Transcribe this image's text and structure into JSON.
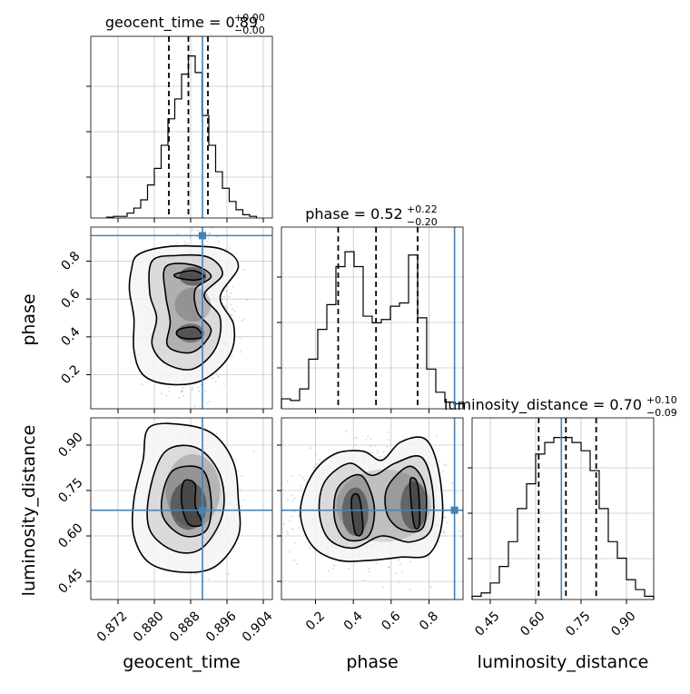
{
  "chart_data": {
    "type": "corner",
    "parameters": [
      "geocent_time",
      "phase",
      "luminosity_distance"
    ],
    "ranges": {
      "geocent_time": [
        0.866,
        0.906
      ],
      "phase": [
        0.02,
        0.98
      ],
      "luminosity_distance": [
        0.39,
        0.99
      ]
    },
    "ticks": {
      "geocent_time": [
        0.872,
        0.88,
        0.888,
        0.896,
        0.904
      ],
      "phase": [
        0.2,
        0.4,
        0.6,
        0.8
      ],
      "luminosity_distance": [
        0.45,
        0.6,
        0.75,
        0.9
      ]
    },
    "tick_labels": {
      "geocent_time": [
        "0.872",
        "0.880",
        "0.888",
        "0.896",
        "0.904"
      ],
      "phase": [
        "0.2",
        "0.4",
        "0.6",
        "0.8"
      ],
      "luminosity_distance": [
        "0.45",
        "0.60",
        "0.75",
        "0.90"
      ]
    },
    "axis_labels": {
      "geocent_time": "geocent_time",
      "phase": "phase",
      "luminosity_distance": "luminosity_distance"
    },
    "titles": {
      "geocent_time": {
        "name": "geocent_time",
        "median": "0.89",
        "plus": "+0.00",
        "minus": "−0.00"
      },
      "phase": {
        "name": "phase",
        "median": "0.52",
        "plus": "+0.22",
        "minus": "−0.20"
      },
      "luminosity_distance": {
        "name": "luminosity_distance",
        "median": "0.70",
        "plus": "+0.10",
        "minus": "−0.09"
      }
    },
    "truths": {
      "geocent_time": 0.8906,
      "phase": 0.935,
      "luminosity_distance": 0.685
    },
    "quantiles": {
      "geocent_time": [
        0.8832,
        0.8875,
        0.8918
      ],
      "phase": [
        0.32,
        0.52,
        0.74
      ],
      "luminosity_distance": [
        0.61,
        0.7,
        0.8
      ]
    },
    "histograms": {
      "geocent_time": {
        "bins": [
          0.8695,
          0.871,
          0.8725,
          0.874,
          0.8755,
          0.877,
          0.8785,
          0.88,
          0.8815,
          0.883,
          0.8845,
          0.886,
          0.8875,
          0.889,
          0.8905,
          0.892,
          0.8935,
          0.895,
          0.8965,
          0.898,
          0.8995,
          0.901,
          0.9025
        ],
        "counts": [
          0.005,
          0.01,
          0.01,
          0.03,
          0.06,
          0.11,
          0.2,
          0.3,
          0.44,
          0.6,
          0.72,
          0.87,
          0.98,
          0.88,
          0.62,
          0.44,
          0.28,
          0.18,
          0.1,
          0.05,
          0.02,
          0.01
        ]
      },
      "phase": {
        "bins": [
          0.02,
          0.068,
          0.116,
          0.164,
          0.212,
          0.26,
          0.308,
          0.356,
          0.404,
          0.452,
          0.5,
          0.548,
          0.596,
          0.644,
          0.692,
          0.74,
          0.788,
          0.836,
          0.884,
          0.932,
          0.98
        ],
        "counts": [
          0.06,
          0.05,
          0.12,
          0.3,
          0.48,
          0.63,
          0.86,
          0.95,
          0.86,
          0.56,
          0.52,
          0.54,
          0.62,
          0.64,
          0.93,
          0.55,
          0.24,
          0.1,
          0.04,
          0.03
        ]
      },
      "luminosity_distance": {
        "bins": [
          0.39,
          0.42,
          0.45,
          0.48,
          0.51,
          0.54,
          0.57,
          0.6,
          0.63,
          0.66,
          0.69,
          0.72,
          0.75,
          0.78,
          0.81,
          0.84,
          0.87,
          0.9,
          0.93,
          0.96,
          0.99
        ],
        "counts": [
          0.02,
          0.04,
          0.1,
          0.2,
          0.35,
          0.55,
          0.7,
          0.88,
          0.95,
          0.98,
          0.98,
          0.95,
          0.9,
          0.78,
          0.55,
          0.35,
          0.25,
          0.12,
          0.06,
          0.02
        ]
      }
    },
    "contours": {
      "phase_vs_geocent_time": [
        {
          "level": 1,
          "points": [
            [
              0.8762,
              0.83
            ],
            [
              0.881,
              0.87
            ],
            [
              0.888,
              0.88
            ],
            [
              0.8952,
              0.86
            ],
            [
              0.8985,
              0.77
            ],
            [
              0.8945,
              0.61
            ],
            [
              0.8975,
              0.46
            ],
            [
              0.8965,
              0.3
            ],
            [
              0.8905,
              0.17
            ],
            [
              0.883,
              0.15
            ],
            [
              0.8775,
              0.2
            ],
            [
              0.8755,
              0.33
            ],
            [
              0.8755,
              0.5
            ],
            [
              0.8745,
              0.65
            ],
            [
              0.875,
              0.76
            ]
          ]
        },
        {
          "level": 2,
          "points": [
            [
              0.8795,
              0.8
            ],
            [
              0.885,
              0.83
            ],
            [
              0.892,
              0.82
            ],
            [
              0.895,
              0.73
            ],
            [
              0.891,
              0.62
            ],
            [
              0.8945,
              0.5
            ],
            [
              0.8935,
              0.34
            ],
            [
              0.8885,
              0.23
            ],
            [
              0.8825,
              0.26
            ],
            [
              0.8795,
              0.36
            ],
            [
              0.8805,
              0.5
            ],
            [
              0.879,
              0.63
            ]
          ]
        },
        {
          "level": 3,
          "points": [
            [
              0.8825,
              0.77
            ],
            [
              0.8885,
              0.78
            ],
            [
              0.8925,
              0.72
            ],
            [
              0.889,
              0.65
            ],
            [
              0.8895,
              0.53
            ],
            [
              0.8925,
              0.43
            ],
            [
              0.8885,
              0.32
            ],
            [
              0.883,
              0.35
            ],
            [
              0.8835,
              0.48
            ],
            [
              0.8825,
              0.62
            ]
          ]
        },
        {
          "level": 4,
          "points": [
            [
              0.8845,
              0.73
            ],
            [
              0.8885,
              0.75
            ],
            [
              0.891,
              0.72
            ],
            [
              0.889,
              0.7
            ],
            [
              0.8855,
              0.71
            ]
          ]
        },
        {
          "level": 4,
          "points": [
            [
              0.8855,
              0.44
            ],
            [
              0.889,
              0.45
            ],
            [
              0.8905,
              0.4
            ],
            [
              0.887,
              0.39
            ],
            [
              0.885,
              0.41
            ]
          ]
        }
      ],
      "luminosity_distance_vs_geocent_time": [
        {
          "level": 1,
          "points": [
            [
              0.879,
              0.96
            ],
            [
              0.8875,
              0.965
            ],
            [
              0.8935,
              0.93
            ],
            [
              0.8975,
              0.84
            ],
            [
              0.8985,
              0.72
            ],
            [
              0.8985,
              0.6
            ],
            [
              0.8935,
              0.5
            ],
            [
              0.8865,
              0.48
            ],
            [
              0.879,
              0.51
            ],
            [
              0.8755,
              0.6
            ],
            [
              0.8755,
              0.72
            ],
            [
              0.8775,
              0.85
            ]
          ]
        },
        {
          "level": 2,
          "points": [
            [
              0.8825,
              0.88
            ],
            [
              0.8895,
              0.89
            ],
            [
              0.8945,
              0.8
            ],
            [
              0.895,
              0.67
            ],
            [
              0.8905,
              0.56
            ],
            [
              0.8845,
              0.55
            ],
            [
              0.879,
              0.62
            ],
            [
              0.879,
              0.75
            ]
          ]
        },
        {
          "level": 3,
          "points": [
            [
              0.8845,
              0.82
            ],
            [
              0.8905,
              0.82
            ],
            [
              0.8925,
              0.72
            ],
            [
              0.8915,
              0.62
            ],
            [
              0.8865,
              0.6
            ],
            [
              0.882,
              0.66
            ],
            [
              0.882,
              0.75
            ]
          ]
        },
        {
          "level": 4,
          "points": [
            [
              0.8865,
              0.78
            ],
            [
              0.889,
              0.77
            ],
            [
              0.889,
              0.7
            ],
            [
              0.8905,
              0.64
            ],
            [
              0.8875,
              0.64
            ],
            [
              0.886,
              0.71
            ]
          ]
        }
      ],
      "luminosity_distance_vs_phase": [
        {
          "level": 1,
          "points": [
            [
              0.18,
              0.8
            ],
            [
              0.3,
              0.87
            ],
            [
              0.45,
              0.88
            ],
            [
              0.55,
              0.85
            ],
            [
              0.65,
              0.91
            ],
            [
              0.78,
              0.92
            ],
            [
              0.85,
              0.82
            ],
            [
              0.87,
              0.65
            ],
            [
              0.8,
              0.54
            ],
            [
              0.65,
              0.53
            ],
            [
              0.5,
              0.52
            ],
            [
              0.32,
              0.52
            ],
            [
              0.18,
              0.57
            ],
            [
              0.12,
              0.68
            ]
          ]
        },
        {
          "level": 2,
          "points": [
            [
              0.25,
              0.78
            ],
            [
              0.38,
              0.84
            ],
            [
              0.5,
              0.8
            ],
            [
              0.62,
              0.84
            ],
            [
              0.76,
              0.86
            ],
            [
              0.82,
              0.75
            ],
            [
              0.81,
              0.62
            ],
            [
              0.7,
              0.58
            ],
            [
              0.55,
              0.6
            ],
            [
              0.4,
              0.56
            ],
            [
              0.27,
              0.59
            ],
            [
              0.22,
              0.68
            ]
          ]
        },
        {
          "level": 3,
          "points": [
            [
              0.32,
              0.76
            ],
            [
              0.44,
              0.8
            ],
            [
              0.51,
              0.7
            ],
            [
              0.48,
              0.6
            ],
            [
              0.36,
              0.59
            ],
            [
              0.3,
              0.66
            ]
          ]
        },
        {
          "level": 3,
          "points": [
            [
              0.58,
              0.76
            ],
            [
              0.7,
              0.83
            ],
            [
              0.78,
              0.76
            ],
            [
              0.77,
              0.63
            ],
            [
              0.66,
              0.62
            ],
            [
              0.58,
              0.67
            ]
          ]
        },
        {
          "level": 4,
          "points": [
            [
              0.39,
              0.72
            ],
            [
              0.43,
              0.73
            ],
            [
              0.45,
              0.62
            ],
            [
              0.41,
              0.61
            ]
          ]
        },
        {
          "level": 4,
          "points": [
            [
              0.7,
              0.78
            ],
            [
              0.74,
              0.77
            ],
            [
              0.75,
              0.64
            ],
            [
              0.72,
              0.64
            ]
          ]
        }
      ]
    },
    "density_blobs": {
      "phase_vs_geocent_time": [
        [
          0.8885,
          0.72,
          0.003,
          0.05,
          0.85
        ],
        [
          0.888,
          0.42,
          0.003,
          0.05,
          0.75
        ],
        [
          0.8885,
          0.57,
          0.004,
          0.09,
          0.35
        ]
      ],
      "luminosity_distance_vs_geocent_time": [
        [
          0.8875,
          0.7,
          0.004,
          0.08,
          0.85
        ],
        [
          0.8885,
          0.75,
          0.006,
          0.12,
          0.35
        ]
      ],
      "luminosity_distance_vs_phase": [
        [
          0.41,
          0.68,
          0.07,
          0.08,
          0.8
        ],
        [
          0.72,
          0.7,
          0.07,
          0.08,
          0.8
        ],
        [
          0.56,
          0.7,
          0.25,
          0.12,
          0.25
        ]
      ]
    },
    "scatter_spread": {
      "geocent_time": [
        0.8889,
        0.0045
      ],
      "phase": [
        0.52,
        0.22
      ],
      "luminosity_distance": [
        0.705,
        0.1
      ]
    }
  }
}
